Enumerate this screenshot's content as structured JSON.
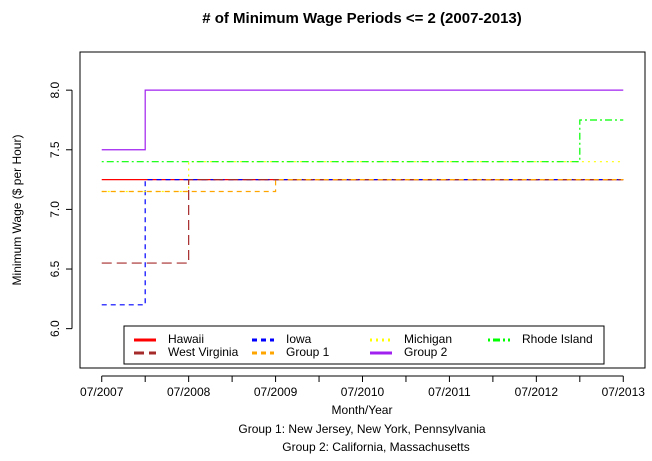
{
  "chart_data": {
    "type": "line",
    "step": true,
    "title": "# of Minimum Wage Periods <= 2 (2007-2013)",
    "x_label": "Month/Year",
    "y_label": "Minimum Wage ($ per Hour)",
    "notes": [
      "Group 1: New Jersey, New York, Pennsylvania",
      "Group 2: California, Massachusetts"
    ],
    "x": [
      "07/2007",
      "01/2008",
      "07/2008",
      "01/2009",
      "07/2009",
      "01/2010",
      "07/2010",
      "01/2011",
      "07/2011",
      "01/2012",
      "07/2012",
      "01/2013",
      "07/2013"
    ],
    "xlim": [
      "04/2007",
      "10/2013"
    ],
    "xticks": [
      "07/2007",
      "07/2008",
      "07/2009",
      "07/2010",
      "07/2011",
      "07/2012",
      "07/2013"
    ],
    "xminorticks": [
      "01/2008",
      "01/2009",
      "01/2010",
      "01/2011",
      "01/2012",
      "01/2013"
    ],
    "ylim": [
      5.67,
      8.32
    ],
    "yticks": [
      {
        "value": 6,
        "label": "6.0"
      },
      {
        "value": 6.5,
        "label": "6.5"
      },
      {
        "value": 7,
        "label": "7.0"
      },
      {
        "value": 7.5,
        "label": "7.5"
      },
      {
        "value": 8,
        "label": "8.0"
      }
    ],
    "legend": "bottom",
    "series": [
      {
        "name": "Hawaii",
        "color": "#ff0000",
        "linetype": "solid",
        "values": [
          7.25,
          7.25,
          7.25,
          7.25,
          7.25,
          7.25,
          7.25,
          7.25,
          7.25,
          7.25,
          7.25,
          7.25,
          7.25
        ]
      },
      {
        "name": "Iowa",
        "color": "#0000ff",
        "linetype": "dashed",
        "values": [
          6.2,
          7.25,
          7.25,
          7.25,
          7.25,
          7.25,
          7.25,
          7.25,
          7.25,
          7.25,
          7.25,
          7.25,
          7.25
        ]
      },
      {
        "name": "Michigan",
        "color": "#ffff00",
        "linetype": "dotted",
        "values": [
          7.15,
          7.15,
          7.4,
          7.4,
          7.4,
          7.4,
          7.4,
          7.4,
          7.4,
          7.4,
          7.4,
          7.4,
          7.4
        ]
      },
      {
        "name": "Rhode Island",
        "color": "#00ff00",
        "linetype": "dotdash",
        "values": [
          7.4,
          7.4,
          7.4,
          7.4,
          7.4,
          7.4,
          7.4,
          7.4,
          7.4,
          7.4,
          7.4,
          7.75,
          7.75
        ]
      },
      {
        "name": "West Virginia",
        "color": "#a52a2a",
        "linetype": "longdash",
        "values": [
          6.55,
          6.55,
          7.25,
          7.25,
          7.25,
          7.25,
          7.25,
          7.25,
          7.25,
          7.25,
          7.25,
          7.25,
          7.25
        ]
      },
      {
        "name": "Group 1",
        "color": "#ffa500",
        "linetype": "dashed",
        "values": [
          7.15,
          7.15,
          7.15,
          7.15,
          7.25,
          7.25,
          7.25,
          7.25,
          7.25,
          7.25,
          7.25,
          7.25,
          7.25
        ]
      },
      {
        "name": "Group 2",
        "color": "#a020f0",
        "linetype": "solid",
        "values": [
          7.5,
          8,
          8,
          8,
          8,
          8,
          8,
          8,
          8,
          8,
          8,
          8,
          8
        ]
      }
    ]
  }
}
